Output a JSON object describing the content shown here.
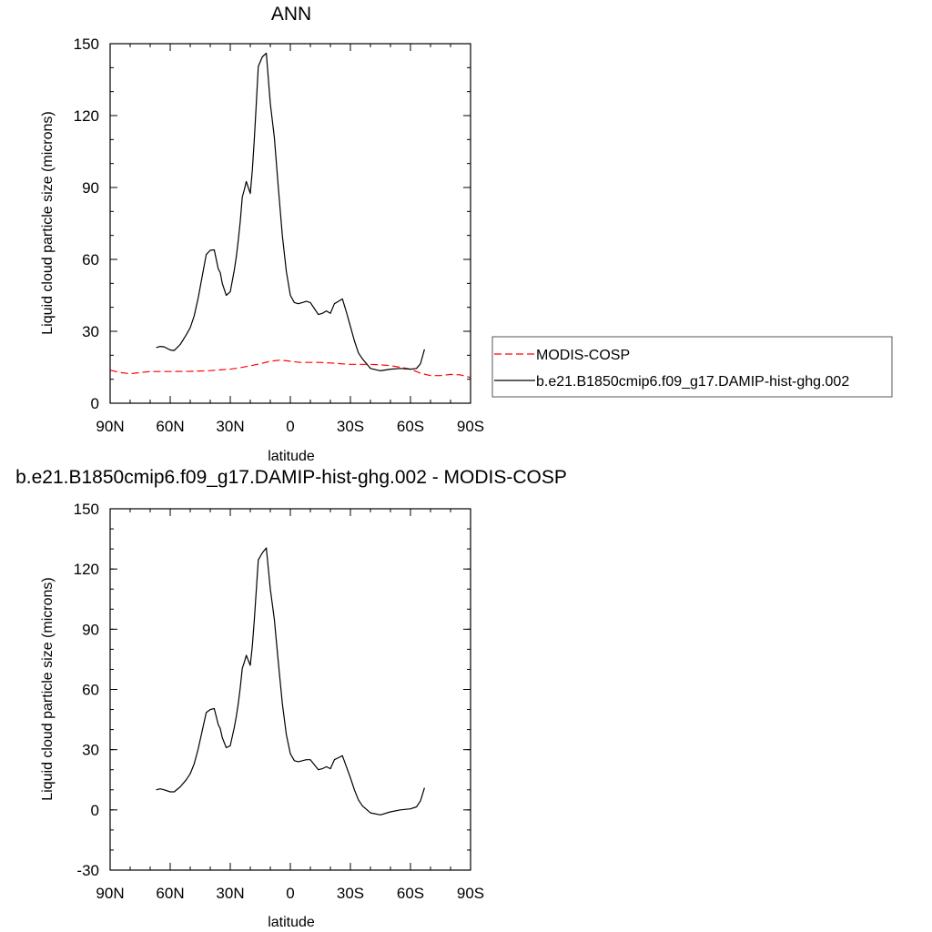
{
  "figure": {
    "top_title": "ANN",
    "bottom_title": "b.e21.B1850cmip6.f09_g17.DAMIP-hist-ghg.002 - MODIS-COSP"
  },
  "legend": {
    "items": [
      {
        "label": "MODIS-COSP",
        "color": "#ff0000",
        "dash": "dashed"
      },
      {
        "label": "b.e21.B1850cmip6.f09_g17.DAMIP-hist-ghg.002",
        "color": "#000000",
        "dash": "solid"
      }
    ]
  },
  "chart_data": [
    {
      "type": "line",
      "title": "ANN",
      "xlabel": "latitude",
      "ylabel": "Liquid cloud particle size (microns)",
      "xlim": [
        90,
        -90
      ],
      "ylim": [
        0,
        150
      ],
      "x_ticks": [
        90,
        60,
        30,
        0,
        -30,
        -60,
        -90
      ],
      "x_tick_labels": [
        "90N",
        "60N",
        "30N",
        "0",
        "30S",
        "60S",
        "90S"
      ],
      "y_ticks": [
        0,
        30,
        60,
        90,
        120,
        150
      ],
      "y_tick_labels": [
        "0",
        "30",
        "60",
        "90",
        "120",
        "150"
      ],
      "legend_position": "right",
      "series": [
        {
          "name": "MODIS-COSP",
          "color": "#ff0000",
          "dash": "dashed",
          "x": [
            90,
            85,
            80,
            75,
            70,
            60,
            50,
            40,
            35,
            30,
            25,
            20,
            15,
            10,
            5,
            0,
            -5,
            -10,
            -15,
            -20,
            -25,
            -30,
            -35,
            -40,
            -45,
            -50,
            -55,
            -60,
            -65,
            -70,
            -75,
            -80,
            -85,
            -90
          ],
          "y": [
            13.8,
            12.8,
            12.3,
            12.8,
            13.2,
            13.2,
            13.3,
            13.6,
            13.9,
            14.2,
            14.8,
            15.6,
            16.5,
            17.5,
            18.0,
            17.5,
            17.0,
            17.0,
            17.0,
            16.8,
            16.5,
            16.2,
            16.2,
            16.2,
            16.0,
            15.7,
            15.0,
            14.2,
            12.5,
            11.5,
            11.5,
            12.0,
            11.8,
            10.7
          ]
        },
        {
          "name": "b.e21.B1850cmip6.f09_g17.DAMIP-hist-ghg.002",
          "color": "#000000",
          "dash": "solid",
          "x": [
            67,
            65,
            63,
            60,
            58,
            55,
            52,
            50,
            48,
            46,
            44,
            42,
            40,
            38,
            36,
            35,
            34,
            32,
            30,
            28,
            27,
            26,
            25,
            24,
            23,
            22,
            21,
            20,
            19,
            18,
            17,
            16,
            14,
            12,
            10,
            8,
            6,
            4,
            2,
            0,
            -2,
            -4,
            -6,
            -8,
            -10,
            -12,
            -14,
            -16,
            -18,
            -20,
            -22,
            -24,
            -26,
            -28,
            -30,
            -32,
            -34,
            -36,
            -40,
            -45,
            -50,
            -55,
            -60,
            -63,
            -65,
            -67
          ],
          "y": [
            23.2,
            23.7,
            23.5,
            22.2,
            22.0,
            24.5,
            28.5,
            31.5,
            36.5,
            44.0,
            53.0,
            62.0,
            63.8,
            64.0,
            56.0,
            54.5,
            50.0,
            45.0,
            46.5,
            55.5,
            61.0,
            68.0,
            76.0,
            86.0,
            89.0,
            92.5,
            90.0,
            87.5,
            97.0,
            110.0,
            125.0,
            140.5,
            144.5,
            146.0,
            125.0,
            111.0,
            90.0,
            70.0,
            55.0,
            45.0,
            42.0,
            41.5,
            42.0,
            42.5,
            42.0,
            39.5,
            37.0,
            37.5,
            38.5,
            37.5,
            41.5,
            42.5,
            43.5,
            38.0,
            32.0,
            26.0,
            21.0,
            18.5,
            14.5,
            13.5,
            14.2,
            14.5,
            14.2,
            14.5,
            16.5,
            22.5
          ]
        }
      ]
    },
    {
      "type": "line",
      "title": "b.e21.B1850cmip6.f09_g17.DAMIP-hist-ghg.002 - MODIS-COSP",
      "xlabel": "latitude",
      "ylabel": "Liquid cloud particle size (microns)",
      "xlim": [
        90,
        -90
      ],
      "ylim": [
        -30,
        150
      ],
      "x_ticks": [
        90,
        60,
        30,
        0,
        -30,
        -60,
        -90
      ],
      "x_tick_labels": [
        "90N",
        "60N",
        "30N",
        "0",
        "30S",
        "60S",
        "90S"
      ],
      "y_ticks": [
        -30,
        0,
        30,
        60,
        90,
        120,
        150
      ],
      "y_tick_labels": [
        "-30",
        "0",
        "30",
        "60",
        "90",
        "120",
        "150"
      ],
      "series": [
        {
          "color": "#000000",
          "dash": "solid",
          "x": [
            67,
            65,
            63,
            60,
            58,
            55,
            52,
            50,
            48,
            46,
            44,
            42,
            40,
            38,
            36,
            35,
            34,
            32,
            30,
            28,
            27,
            26,
            25,
            24,
            23,
            22,
            21,
            20,
            19,
            18,
            17,
            16,
            14,
            12,
            10,
            8,
            6,
            4,
            2,
            0,
            -2,
            -4,
            -6,
            -8,
            -10,
            -12,
            -14,
            -16,
            -18,
            -20,
            -22,
            -24,
            -26,
            -28,
            -30,
            -32,
            -34,
            -36,
            -40,
            -45,
            -50,
            -55,
            -60,
            -63,
            -65,
            -67
          ],
          "y": [
            10.0,
            10.5,
            10.0,
            9.0,
            9.0,
            11.5,
            15.0,
            18.0,
            23.0,
            30.5,
            39.5,
            48.5,
            50.0,
            50.5,
            42.5,
            40.5,
            36.0,
            31.0,
            32.0,
            41.0,
            46.5,
            53.0,
            61.0,
            70.5,
            73.5,
            77.0,
            74.5,
            72.0,
            81.5,
            94.5,
            109.5,
            124.5,
            128.0,
            130.5,
            110.0,
            95.0,
            73.5,
            53.0,
            37.5,
            28.0,
            24.5,
            24.0,
            24.5,
            25.0,
            25.0,
            22.5,
            20.0,
            20.5,
            21.5,
            20.5,
            25.0,
            26.0,
            27.0,
            21.5,
            16.0,
            10.0,
            5.0,
            2.0,
            -1.5,
            -2.5,
            -1.0,
            0.0,
            0.5,
            1.5,
            4.5,
            11.0
          ]
        }
      ]
    }
  ]
}
